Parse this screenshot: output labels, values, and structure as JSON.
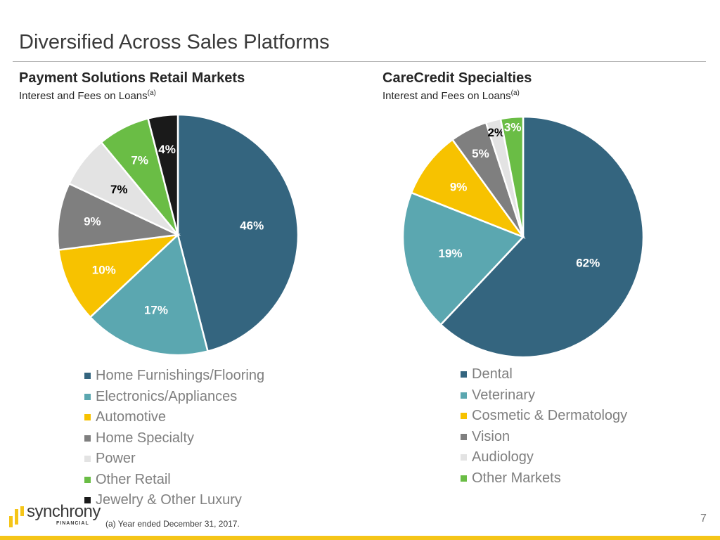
{
  "slide": {
    "title": "Diversified Across Sales Platforms",
    "page_number": "7",
    "footnote": "(a) Year ended December 31, 2017.",
    "logo": {
      "name": "synchrony",
      "sub": "FINANCIAL"
    },
    "accent_color": "#f5c518"
  },
  "left": {
    "heading": "Payment Solutions Retail Markets",
    "subheading": "Interest and Fees on Loans",
    "superscript": "(a)"
  },
  "right": {
    "heading": "CareCredit Specialties",
    "subheading": "Interest and Fees on Loans",
    "superscript": "(a)"
  },
  "chart_data": [
    {
      "type": "pie",
      "title": "Payment Solutions Retail Markets",
      "subtitle": "Interest and Fees on Loans(a)",
      "start": "12 o'clock, clockwise",
      "legend_position": "bottom",
      "categories": [
        "Home Furnishings/Flooring",
        "Electronics/Appliances",
        "Automotive",
        "Home Specialty",
        "Power",
        "Other Retail",
        "Jewelry & Other Luxury"
      ],
      "values": [
        46,
        17,
        10,
        9,
        7,
        7,
        4
      ],
      "labels": [
        "46%",
        "17%",
        "10%",
        "9%",
        "7%",
        "7%",
        "4%"
      ],
      "colors": [
        "#34657f",
        "#5ba7b0",
        "#f7c200",
        "#7f7f7f",
        "#e3e3e3",
        "#6abd45",
        "#1a1a1a"
      ],
      "label_colors": [
        "#ffffff",
        "#ffffff",
        "#ffffff",
        "#ffffff",
        "#000000",
        "#ffffff",
        "#ffffff"
      ]
    },
    {
      "type": "pie",
      "title": "CareCredit Specialties",
      "subtitle": "Interest and Fees on Loans(a)",
      "start": "12 o'clock, clockwise",
      "legend_position": "bottom",
      "categories": [
        "Dental",
        "Veterinary",
        "Cosmetic & Dermatology",
        "Vision",
        "Audiology",
        "Other Markets"
      ],
      "values": [
        62,
        19,
        9,
        5,
        2,
        3
      ],
      "labels": [
        "62%",
        "19%",
        "9%",
        "5%",
        "2%",
        "3%"
      ],
      "colors": [
        "#34657f",
        "#5ba7b0",
        "#f7c200",
        "#7f7f7f",
        "#e3e3e3",
        "#6abd45"
      ],
      "label_colors": [
        "#ffffff",
        "#ffffff",
        "#ffffff",
        "#ffffff",
        "#000000",
        "#ffffff"
      ]
    }
  ]
}
